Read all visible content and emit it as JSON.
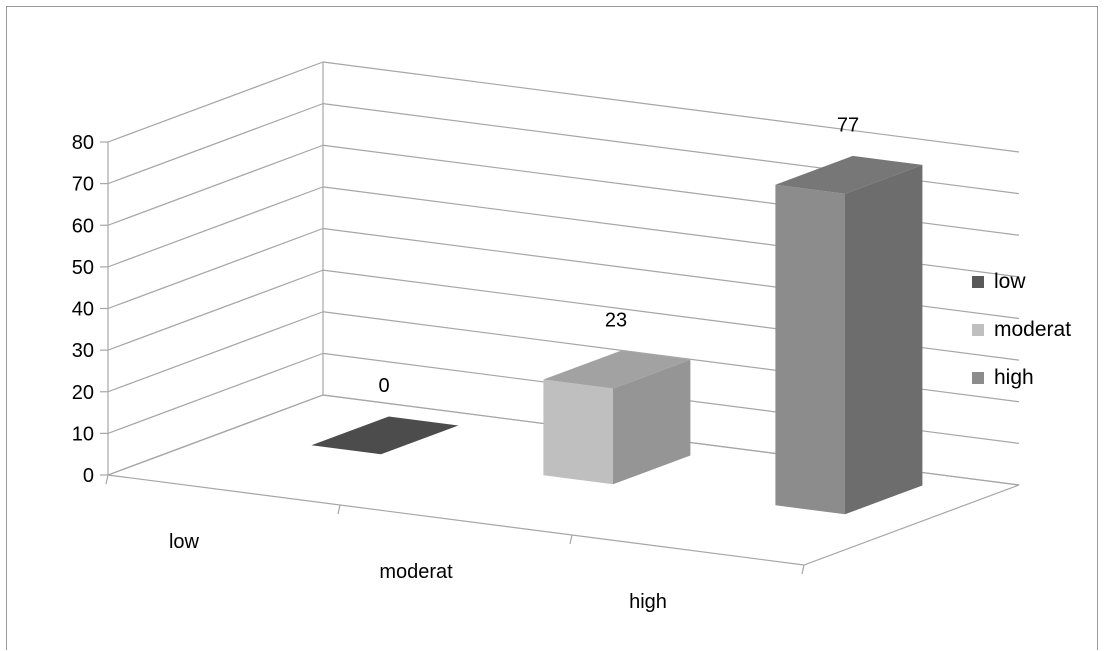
{
  "chart_data": {
    "type": "bar",
    "title": "",
    "xlabel": "",
    "ylabel": "",
    "categories": [
      "low",
      "moderat",
      "high"
    ],
    "values": [
      0,
      23,
      77
    ],
    "data_labels": [
      "0",
      "23",
      "77"
    ],
    "ylim": [
      0,
      80
    ],
    "yticks": [
      "0",
      "10",
      "20",
      "30",
      "40",
      "50",
      "60",
      "70",
      "80"
    ],
    "grid": true,
    "three_d": true,
    "legend": {
      "position": "right",
      "entries": [
        {
          "label": "low",
          "color": "#595959"
        },
        {
          "label": "moderat",
          "color": "#bfbfbf"
        },
        {
          "label": "high",
          "color": "#8c8c8c"
        }
      ]
    },
    "bar_colors": [
      "#595959",
      "#bfbfbf",
      "#8c8c8c"
    ]
  }
}
